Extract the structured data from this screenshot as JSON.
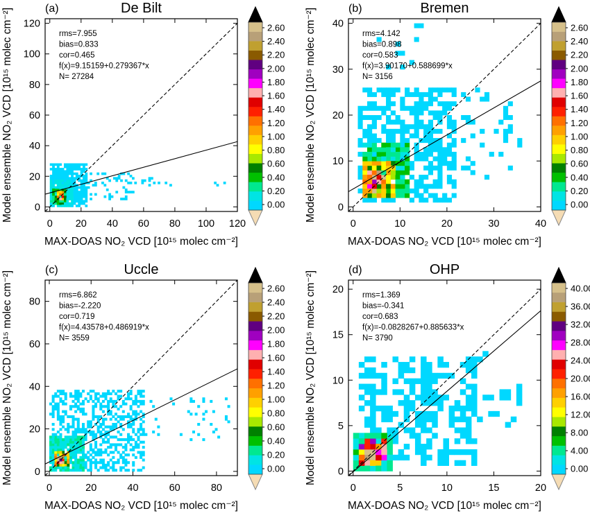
{
  "chart_data": [
    {
      "type": "heatmap",
      "panel_label": "(a)",
      "title": "De Bilt",
      "xlabel": "MAX-DOAS NO₂ VCD [10¹⁵ molec cm⁻²]",
      "ylabel": "Model ensemble NO₂ VCD [10¹⁵ molec cm⁻²]",
      "xlim": [
        -3,
        120
      ],
      "ylim": [
        -3,
        123
      ],
      "xticks": [
        0,
        20,
        40,
        60,
        80,
        100,
        120
      ],
      "yticks": [
        0,
        20,
        40,
        60,
        80,
        100,
        120
      ],
      "stats": [
        "rms=7.955",
        "bias=0.833",
        "cor=0.465",
        "f(x)=9.15159+0.279367*x",
        "N= 27284"
      ],
      "fit": {
        "intercept": 9.15159,
        "slope": 0.279367
      },
      "one_to_one": true,
      "colorbar": {
        "ticks": [
          "0.00",
          "0.20",
          "0.40",
          "0.60",
          "0.80",
          "1.00",
          "1.20",
          "1.40",
          "1.60",
          "1.80",
          "2.00",
          "2.20",
          "2.40",
          "2.60"
        ],
        "max": 2.7
      },
      "cell_size": 1.5,
      "clusters": [
        {
          "x_range": [
            0,
            24
          ],
          "y_range": [
            0,
            28
          ],
          "density": 0.8,
          "intensity": 0.05
        },
        {
          "x_range": [
            0,
            14
          ],
          "y_range": [
            0,
            18
          ],
          "density": 0.9,
          "intensity": 0.12
        },
        {
          "x_range": [
            2,
            10
          ],
          "y_range": [
            2,
            12
          ],
          "density": 0.9,
          "intensity": 0.3
        },
        {
          "x_range": [
            4,
            8
          ],
          "y_range": [
            4,
            9
          ],
          "density": 0.8,
          "intensity": 0.9
        },
        {
          "x_range": [
            20,
            55
          ],
          "y_range": [
            4,
            22
          ],
          "density": 0.2,
          "intensity": 0.05
        },
        {
          "x_range": [
            55,
            115
          ],
          "y_range": [
            14,
            20
          ],
          "density": 0.05,
          "intensity": 0.05
        }
      ]
    },
    {
      "type": "heatmap",
      "panel_label": "(b)",
      "title": "Bremen",
      "xlabel": "MAX-DOAS NO₂ VCD [10¹⁵ molec cm⁻²]",
      "ylabel": "Model ensemble NO₂ VCD [10¹⁵ molec cm⁻²]",
      "xlim": [
        -1,
        40
      ],
      "ylim": [
        -1,
        41
      ],
      "xticks": [
        0,
        10,
        20,
        30,
        40
      ],
      "yticks": [
        0,
        10,
        20,
        30,
        40
      ],
      "stats": [
        "rms=4.142",
        "bias=0.898",
        "cor=0.583",
        "f(x)=3.90170+0.588699*x",
        "N= 3156"
      ],
      "fit": {
        "intercept": 3.9017,
        "slope": 0.588699
      },
      "one_to_one": true,
      "colorbar": {
        "ticks": [
          "0.00",
          "0.20",
          "0.40",
          "0.60",
          "0.80",
          "1.00",
          "1.20",
          "1.40",
          "1.60",
          "1.80",
          "2.00",
          "2.20",
          "2.40",
          "2.60"
        ],
        "max": 2.7
      },
      "cell_size": 1.0,
      "clusters": [
        {
          "x_range": [
            1,
            22
          ],
          "y_range": [
            1,
            26
          ],
          "density": 0.55,
          "intensity": 0.05
        },
        {
          "x_range": [
            2,
            12
          ],
          "y_range": [
            2,
            14
          ],
          "density": 0.85,
          "intensity": 0.2
        },
        {
          "x_range": [
            2,
            9
          ],
          "y_range": [
            2,
            10
          ],
          "density": 0.9,
          "intensity": 0.55
        },
        {
          "x_range": [
            3,
            7
          ],
          "y_range": [
            3,
            8
          ],
          "density": 0.8,
          "intensity": 1.2
        },
        {
          "x_range": [
            12,
            36
          ],
          "y_range": [
            6,
            26
          ],
          "density": 0.12,
          "intensity": 0.05
        },
        {
          "x_range": [
            5,
            15
          ],
          "y_range": [
            26,
            40
          ],
          "density": 0.08,
          "intensity": 0.05
        }
      ]
    },
    {
      "type": "heatmap",
      "panel_label": "(c)",
      "title": "Uccle",
      "xlabel": "MAX-DOAS NO₂ VCD [10¹⁵ molec cm⁻²]",
      "ylabel": "Model ensemble NO₂ VCD [10¹⁵ molec cm⁻²]",
      "xlim": [
        -2,
        90
      ],
      "ylim": [
        -2,
        90
      ],
      "xticks": [
        0,
        20,
        40,
        60,
        80
      ],
      "yticks": [
        0,
        20,
        40,
        60,
        80
      ],
      "stats": [
        "rms=6.862",
        "bias=-2.220",
        "cor=0.719",
        "f(x)=4.43578+0.486919*x",
        "N= 3559"
      ],
      "fit": {
        "intercept": 4.43578,
        "slope": 0.486919
      },
      "one_to_one": true,
      "colorbar": {
        "ticks": [
          "0.00",
          "0.20",
          "0.40",
          "0.60",
          "0.80",
          "1.00",
          "1.20",
          "1.40",
          "1.60",
          "1.80",
          "2.00",
          "2.20",
          "2.40",
          "2.60"
        ],
        "max": 2.7
      },
      "cell_size": 1.2,
      "clusters": [
        {
          "x_range": [
            0,
            45
          ],
          "y_range": [
            0,
            38
          ],
          "density": 0.45,
          "intensity": 0.05
        },
        {
          "x_range": [
            0,
            16
          ],
          "y_range": [
            0,
            16
          ],
          "density": 0.85,
          "intensity": 0.15
        },
        {
          "x_range": [
            2,
            9
          ],
          "y_range": [
            2,
            9
          ],
          "density": 0.9,
          "intensity": 0.6
        },
        {
          "x_range": [
            3,
            6
          ],
          "y_range": [
            3,
            6
          ],
          "density": 0.8,
          "intensity": 1.5
        },
        {
          "x_range": [
            40,
            88
          ],
          "y_range": [
            14,
            34
          ],
          "density": 0.06,
          "intensity": 0.05
        }
      ]
    },
    {
      "type": "heatmap",
      "panel_label": "(d)",
      "title": "OHP",
      "xlabel": "MAX-DOAS NO₂ VCD [10¹⁵ molec cm⁻²]",
      "ylabel": "Model ensemble NO₂ VCD [10¹⁵ molec cm⁻²]",
      "xlim": [
        -0.5,
        20
      ],
      "ylim": [
        -0.5,
        21
      ],
      "xticks": [
        0,
        5,
        10,
        15,
        20
      ],
      "yticks": [
        0,
        5,
        10,
        15,
        20
      ],
      "stats": [
        "rms=1.369",
        "bias=-0.341",
        "cor=0.683",
        "f(x)=-0.0828267+0.885633*x",
        "N= 3790"
      ],
      "fit": {
        "intercept": -0.0828267,
        "slope": 0.885633
      },
      "one_to_one": true,
      "colorbar": {
        "ticks": [
          "0.00",
          "4.00",
          "8.00",
          "12.00",
          "16.00",
          "20.00",
          "24.00",
          "28.00",
          "32.00",
          "36.00",
          "40.00"
        ],
        "max": 42
      },
      "cell_size": 0.6,
      "clusters": [
        {
          "x_range": [
            0.5,
            13
          ],
          "y_range": [
            0.5,
            12
          ],
          "density": 0.45,
          "intensity": 0.3
        },
        {
          "x_range": [
            0,
            4
          ],
          "y_range": [
            0,
            4
          ],
          "density": 0.95,
          "intensity": 3
        },
        {
          "x_range": [
            0.5,
            3
          ],
          "y_range": [
            0.5,
            3
          ],
          "density": 0.9,
          "intensity": 14
        },
        {
          "x_range": [
            1,
            2
          ],
          "y_range": [
            1,
            2
          ],
          "density": 1,
          "intensity": 30
        },
        {
          "x_range": [
            12,
            18
          ],
          "y_range": [
            5,
            13
          ],
          "density": 0.15,
          "intensity": 0.3
        }
      ]
    }
  ]
}
